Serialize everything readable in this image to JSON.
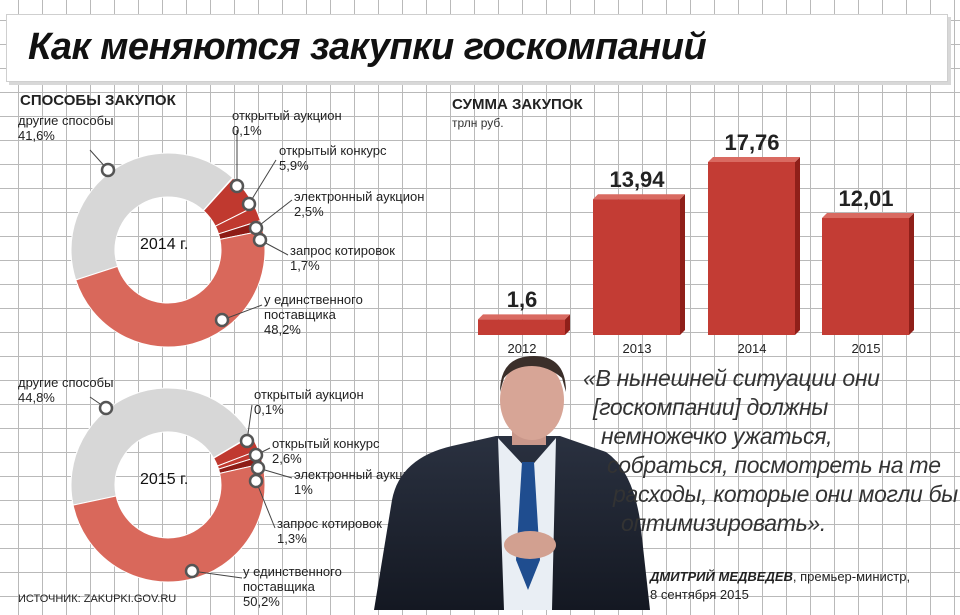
{
  "title": "Как меняются закупки госкомпаний",
  "pie_section_title": "СПОСОБЫ ЗАКУПОК",
  "bar_section_title": "СУММА ЗАКУПОК",
  "bar_unit": "трлн руб.",
  "colors": {
    "grey": "#d7d7d7",
    "salmon": "#d9685b",
    "red": "#c0392f",
    "dark_red": "#8e1c16",
    "bar": "#c33c34",
    "bar_side": "#8f1f19"
  },
  "chart_data": [
    {
      "type": "pie",
      "center_label": "2014 г.",
      "slices": [
        {
          "name": "другие способы",
          "value": 41.6,
          "label": "41,6%"
        },
        {
          "name": "открытый аукцион",
          "value": 0.1,
          "label": "0,1%"
        },
        {
          "name": "открытый конкурс",
          "value": 5.9,
          "label": "5,9%"
        },
        {
          "name": "электронный аукцион",
          "value": 2.5,
          "label": "2,5%"
        },
        {
          "name": "запрос котировок",
          "value": 1.7,
          "label": "1,7%"
        },
        {
          "name": "у единственного поставщика",
          "value": 48.2,
          "label": "48,2%"
        }
      ]
    },
    {
      "type": "pie",
      "center_label": "2015 г.",
      "slices": [
        {
          "name": "другие способы",
          "value": 44.8,
          "label": "44,8%"
        },
        {
          "name": "открытый аукцион",
          "value": 0.1,
          "label": "0,1%"
        },
        {
          "name": "открытый конкурс",
          "value": 2.6,
          "label": "2,6%"
        },
        {
          "name": "электронный аукцион",
          "value": 1,
          "label": "1%"
        },
        {
          "name": "запрос котировок",
          "value": 1.3,
          "label": "1,3%"
        },
        {
          "name": "у единственного поставщика",
          "value": 50.2,
          "label": "50,2%"
        }
      ]
    },
    {
      "type": "bar",
      "categories": [
        "2012",
        "2013",
        "2014",
        "2015"
      ],
      "values": [
        1.6,
        13.94,
        17.76,
        12.01
      ],
      "value_labels": [
        "1,6",
        "13,94",
        "17,76",
        "12,01"
      ],
      "ylim": [
        0,
        18
      ]
    }
  ],
  "quote": {
    "lines": [
      "«В нынешней ситуации они",
      "[госкомпании] должны",
      "немножечко ужаться,",
      "собраться, посмотреть на те",
      "расходы, которые они могли бы",
      "оптимизировать»."
    ]
  },
  "author": {
    "name": "ДМИТРИЙ МЕДВЕДЕВ",
    "role": ", премьер-министр,",
    "date": "8 сентября 2015"
  },
  "source": "ИСТОЧНИК: ZAKUPKI.GOV.RU"
}
